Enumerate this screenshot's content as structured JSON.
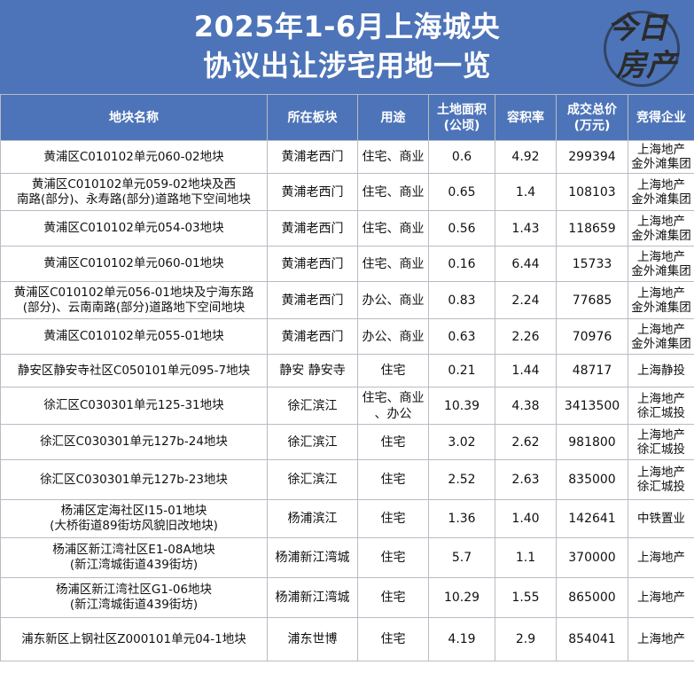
{
  "header": {
    "title_line1": "2025年1-6月上海城央",
    "title_line2": "协议出让涉宅用地一览",
    "logo_text_line1": "今日",
    "logo_text_line2": "房产"
  },
  "table": {
    "columns": [
      {
        "label": "地块名称"
      },
      {
        "label": "所在板块"
      },
      {
        "label": "用途"
      },
      {
        "label_line1": "土地面积",
        "label_line2": "(公顷)"
      },
      {
        "label": "容积率"
      },
      {
        "label_line1": "成交总价",
        "label_line2": "(万元)"
      },
      {
        "label": "竞得企业"
      }
    ],
    "rows": [
      {
        "name": [
          "黄浦区C010102单元060-02地块"
        ],
        "area": "黄浦老西门",
        "use": [
          "住宅、商业"
        ],
        "size": "0.6",
        "far": "4.92",
        "price": "299394",
        "buyer": [
          "上海地产",
          "金外滩集团"
        ]
      },
      {
        "name": [
          "黄浦区C010102单元059-02地块及西",
          "南路(部分)、永寿路(部分)道路地下空间地块"
        ],
        "area": "黄浦老西门",
        "use": [
          "住宅、商业"
        ],
        "size": "0.65",
        "far": "1.4",
        "price": "108103",
        "buyer": [
          "上海地产",
          "金外滩集团"
        ]
      },
      {
        "name": [
          "黄浦区C010102单元054-03地块"
        ],
        "area": "黄浦老西门",
        "use": [
          "住宅、商业"
        ],
        "size": "0.56",
        "far": "1.43",
        "price": "118659",
        "buyer": [
          "上海地产",
          "金外滩集团"
        ]
      },
      {
        "name": [
          "黄浦区C010102单元060-01地块"
        ],
        "area": "黄浦老西门",
        "use": [
          "住宅、商业"
        ],
        "size": "0.16",
        "far": "6.44",
        "price": "15733",
        "buyer": [
          "上海地产",
          "金外滩集团"
        ]
      },
      {
        "name": [
          "黄浦区C010102单元056-01地块及宁海东路",
          "(部分)、云南南路(部分)道路地下空间地块"
        ],
        "area": "黄浦老西门",
        "use": [
          "办公、商业"
        ],
        "size": "0.83",
        "far": "2.24",
        "price": "77685",
        "buyer": [
          "上海地产",
          "金外滩集团"
        ]
      },
      {
        "name": [
          "黄浦区C010102单元055-01地块"
        ],
        "area": "黄浦老西门",
        "use": [
          "办公、商业"
        ],
        "size": "0.63",
        "far": "2.26",
        "price": "70976",
        "buyer": [
          "上海地产",
          "金外滩集团"
        ]
      },
      {
        "name": [
          "静安区静安寺社区C050101单元095-7地块"
        ],
        "area": "静安 静安寺",
        "use": [
          "住宅"
        ],
        "size": "0.21",
        "far": "1.44",
        "price": "48717",
        "buyer": [
          "上海静投"
        ]
      },
      {
        "name": [
          "徐汇区C030301单元125-31地块"
        ],
        "area": "徐汇滨江",
        "use": [
          "住宅、商业",
          "、办公"
        ],
        "size": "10.39",
        "far": "4.38",
        "price": "3413500",
        "buyer": [
          "上海地产",
          "徐汇城投"
        ]
      },
      {
        "name": [
          "徐汇区C030301单元127b-24地块"
        ],
        "area": "徐汇滨江",
        "use": [
          "住宅"
        ],
        "size": "3.02",
        "far": "2.62",
        "price": "981800",
        "buyer": [
          "上海地产",
          "徐汇城投"
        ]
      },
      {
        "name": [
          "徐汇区C030301单元127b-23地块"
        ],
        "area": "徐汇滨江",
        "use": [
          "住宅"
        ],
        "size": "2.52",
        "far": "2.63",
        "price": "835000",
        "buyer": [
          "上海地产",
          "徐汇城投"
        ]
      },
      {
        "name": [
          "杨浦区定海社区I15-01地块",
          "(大桥街道89街坊风貌旧改地块)"
        ],
        "area": "杨浦滨江",
        "use": [
          "住宅"
        ],
        "size": "1.36",
        "far": "1.40",
        "price": "142641",
        "buyer": [
          "中铁置业"
        ]
      },
      {
        "name": [
          "杨浦区新江湾社区E1-08A地块",
          "(新江湾城街道439街坊)"
        ],
        "area": "杨浦新江湾城",
        "use": [
          "住宅"
        ],
        "size": "5.7",
        "far": "1.1",
        "price": "370000",
        "buyer": [
          "上海地产"
        ]
      },
      {
        "name": [
          "杨浦区新江湾社区G1-06地块",
          "(新江湾城街道439街坊)"
        ],
        "area": "杨浦新江湾城",
        "use": [
          "住宅"
        ],
        "size": "10.29",
        "far": "1.55",
        "price": "865000",
        "buyer": [
          "上海地产"
        ]
      },
      {
        "name": [
          "浦东新区上钢社区Z000101单元04-1地块"
        ],
        "area": "浦东世博",
        "use": [
          "住宅"
        ],
        "size": "4.19",
        "far": "2.9",
        "price": "854041",
        "buyer": [
          "上海地产"
        ]
      }
    ]
  },
  "colors": {
    "header_blue": "#4d74b8",
    "grid_line": "#b7bcc4",
    "header_text": "#ffffff"
  }
}
